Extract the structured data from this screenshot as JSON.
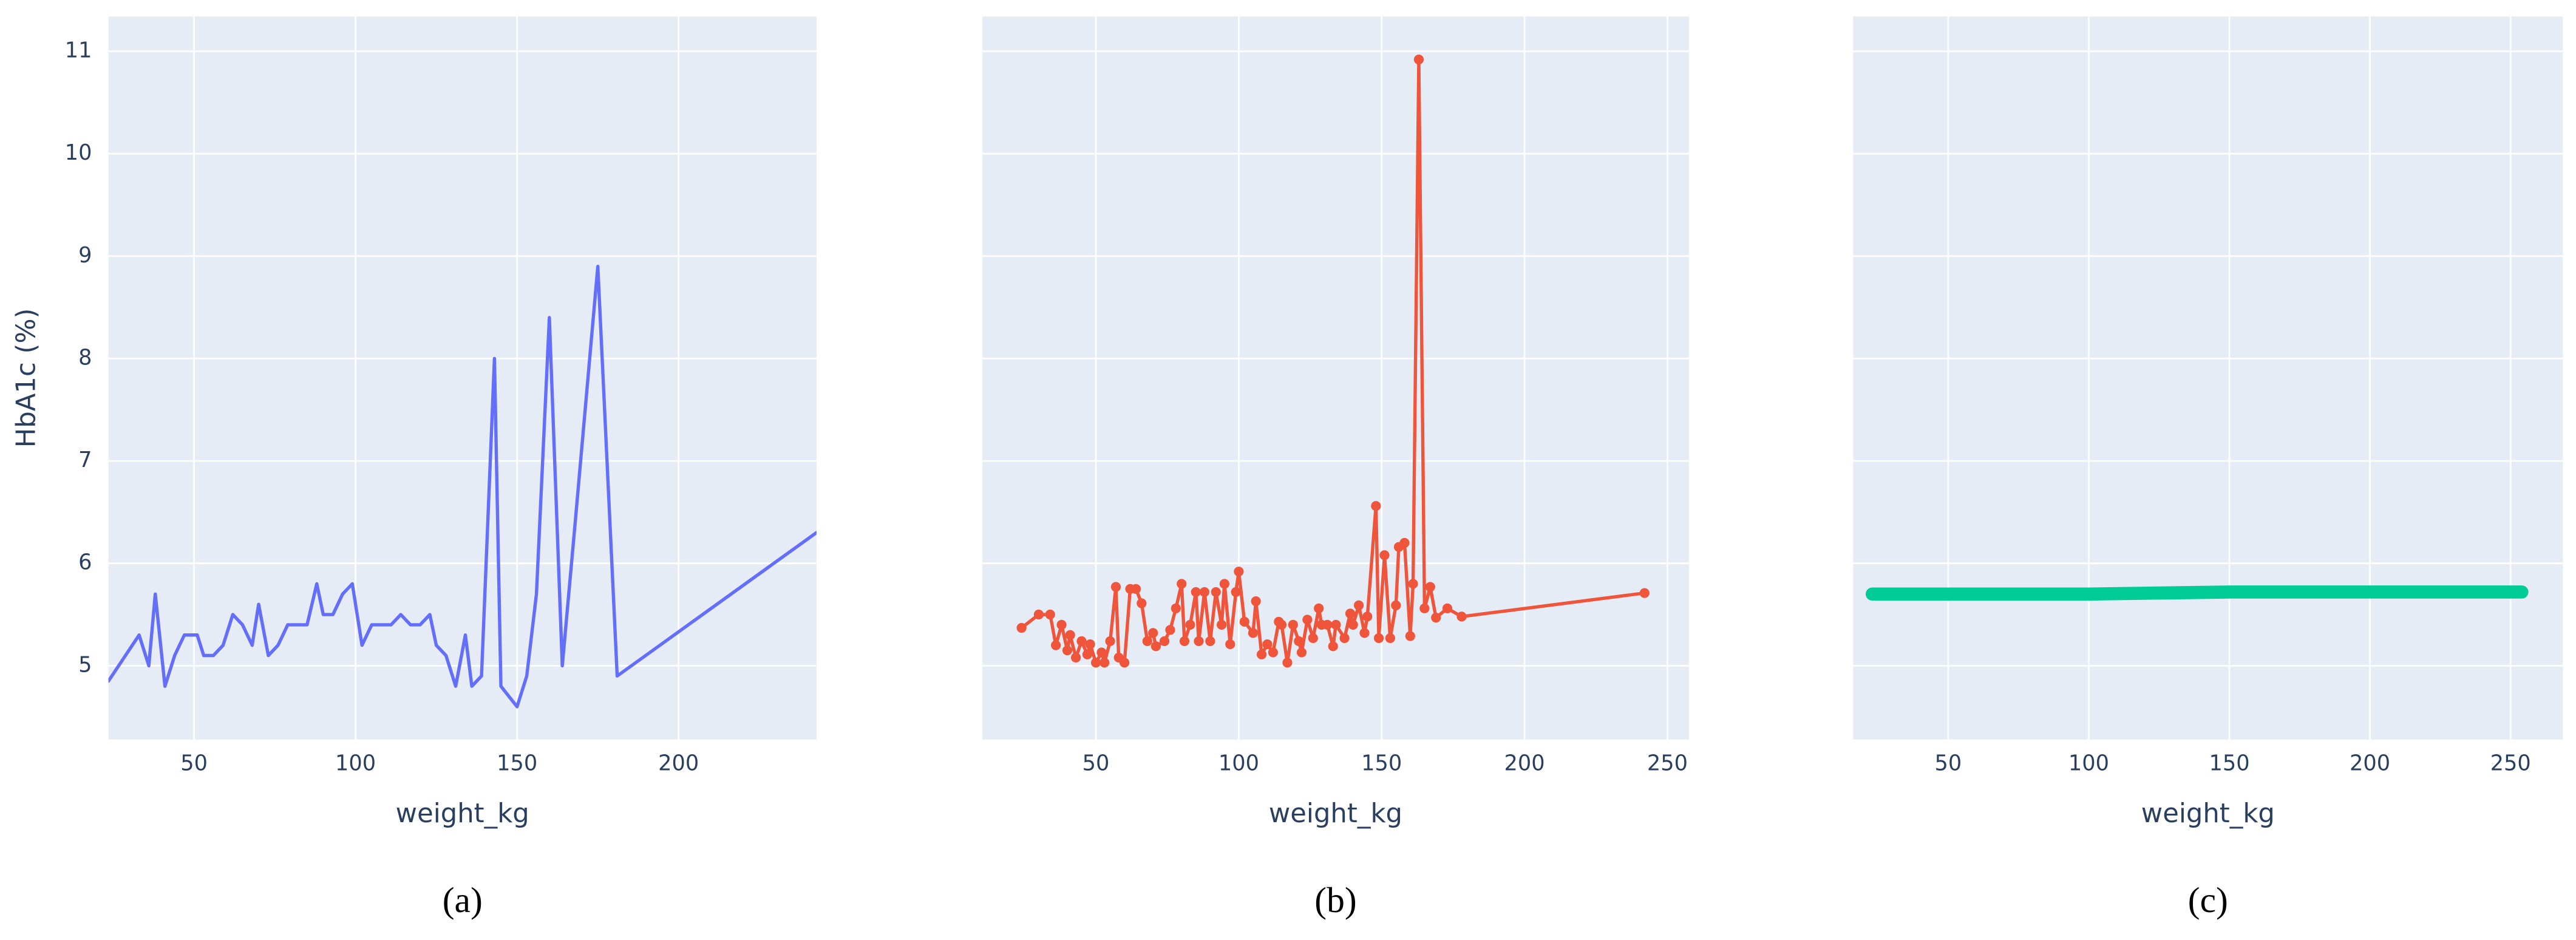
{
  "chart_data": [
    {
      "type": "line",
      "caption": "(a)",
      "x_label": "weight_kg",
      "y_label": "HbA1c (%)",
      "color": "#636efa",
      "markers": false,
      "line_width": 2,
      "xlim": [
        23.5,
        242.7
      ],
      "xticks": [
        50,
        100,
        150,
        200
      ],
      "ylim": [
        4.28,
        11.34
      ],
      "yticks": [
        5,
        6,
        7,
        8,
        9,
        10,
        11
      ],
      "show_ytick_labels": true,
      "grid": true,
      "x": [
        23.5,
        33,
        36,
        38,
        41,
        44,
        47,
        51,
        53,
        56,
        59,
        62,
        65,
        68,
        70,
        73,
        76,
        79,
        85,
        88,
        90,
        93,
        96,
        99,
        102,
        105,
        111,
        114,
        117,
        120,
        123,
        125,
        128,
        131,
        134,
        136,
        139,
        143,
        145,
        150,
        153,
        156,
        160,
        164,
        168,
        175,
        181,
        242.7
      ],
      "values": [
        4.85,
        5.3,
        5.0,
        5.7,
        4.8,
        5.1,
        5.3,
        5.3,
        5.1,
        5.1,
        5.2,
        5.5,
        5.4,
        5.2,
        5.6,
        5.1,
        5.2,
        5.4,
        5.4,
        5.8,
        5.5,
        5.5,
        5.7,
        5.8,
        5.2,
        5.4,
        5.4,
        5.5,
        5.4,
        5.4,
        5.5,
        5.2,
        5.1,
        4.8,
        5.3,
        4.8,
        4.9,
        8.0,
        4.8,
        4.6,
        4.9,
        5.7,
        8.4,
        5.0,
        6.4,
        8.9,
        4.9,
        6.3
      ]
    },
    {
      "type": "line",
      "caption": "(b)",
      "x_label": "weight_kg",
      "color": "#ef553b",
      "markers": true,
      "line_width": 2,
      "xlim": [
        10.3,
        257.5
      ],
      "xticks": [
        50,
        100,
        150,
        200,
        250
      ],
      "ylim": [
        4.28,
        11.34
      ],
      "yticks": [
        5,
        6,
        7,
        8,
        9,
        10,
        11
      ],
      "show_ytick_labels": false,
      "grid": true,
      "x": [
        24,
        30,
        34,
        36,
        38,
        40,
        41,
        43,
        45,
        47,
        48,
        50,
        52,
        53,
        55,
        57,
        58,
        60,
        62,
        64,
        66,
        68,
        70,
        71,
        74,
        76,
        78,
        80,
        81,
        83,
        85,
        86,
        88,
        90,
        92,
        94,
        95,
        97,
        99,
        100,
        102,
        105,
        106,
        108,
        110,
        112,
        114,
        115,
        117,
        119,
        121,
        122,
        124,
        126,
        128,
        129,
        131,
        133,
        134,
        137,
        139,
        140,
        142,
        144,
        145,
        148,
        149,
        151,
        153,
        155,
        156,
        158,
        160,
        161,
        163,
        165,
        167,
        169,
        173,
        178,
        242
      ],
      "values": [
        5.37,
        5.5,
        5.5,
        5.2,
        5.4,
        5.15,
        5.3,
        5.08,
        5.24,
        5.11,
        5.21,
        5.03,
        5.13,
        5.03,
        5.24,
        5.77,
        5.08,
        5.03,
        5.75,
        5.75,
        5.61,
        5.24,
        5.32,
        5.19,
        5.24,
        5.35,
        5.56,
        5.8,
        5.24,
        5.4,
        5.72,
        5.24,
        5.72,
        5.24,
        5.72,
        5.4,
        5.8,
        5.21,
        5.72,
        5.92,
        5.43,
        5.32,
        5.63,
        5.11,
        5.21,
        5.13,
        5.43,
        5.4,
        5.03,
        5.4,
        5.24,
        5.13,
        5.45,
        5.27,
        5.56,
        5.4,
        5.4,
        5.19,
        5.4,
        5.27,
        5.51,
        5.4,
        5.59,
        5.32,
        5.48,
        6.56,
        5.27,
        6.08,
        5.27,
        5.59,
        6.16,
        6.2,
        5.29,
        5.8,
        10.92,
        5.56,
        5.77,
        5.47,
        5.56,
        5.48,
        5.71
      ]
    },
    {
      "type": "line",
      "caption": "(c)",
      "x_label": "weight_kg",
      "color": "#00cc96",
      "markers": false,
      "line_width": 8,
      "xlim": [
        16.2,
        268.6
      ],
      "xticks": [
        50,
        100,
        150,
        200,
        250
      ],
      "ylim": [
        4.28,
        11.34
      ],
      "yticks": [
        5,
        6,
        7,
        8,
        9,
        10,
        11
      ],
      "show_ytick_labels": false,
      "grid": true,
      "x": [
        23,
        60,
        100,
        150,
        200,
        254
      ],
      "values": [
        5.7,
        5.7,
        5.7,
        5.72,
        5.72,
        5.72
      ]
    }
  ]
}
